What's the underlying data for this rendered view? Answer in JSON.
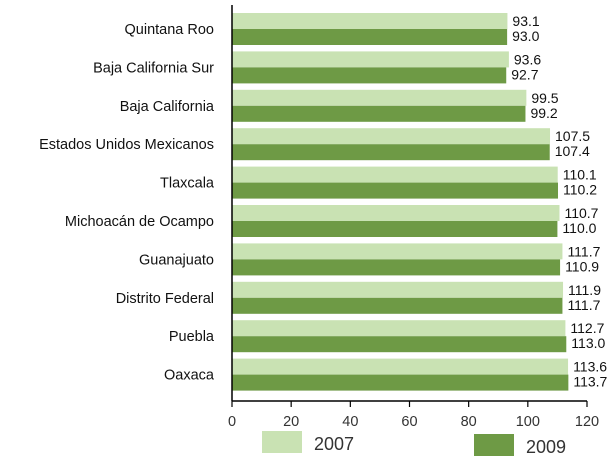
{
  "chart_data": {
    "type": "bar",
    "orientation": "horizontal",
    "categories": [
      "Quintana Roo",
      "Baja California Sur",
      "Baja California",
      "Estados Unidos Mexicanos",
      "Tlaxcala",
      "Michoacán de Ocampo",
      "Guanajuato",
      "Distrito Federal",
      "Puebla",
      "Oaxaca"
    ],
    "series": [
      {
        "name": "2007",
        "color": "#c9e2b3",
        "values": [
          93.1,
          93.6,
          99.5,
          107.5,
          110.1,
          110.7,
          111.7,
          111.9,
          112.7,
          113.6
        ],
        "labels": [
          "93.1",
          "93.6",
          "99.5",
          "107.5",
          "110.1",
          "110.7",
          "111.7",
          "111.9",
          "112.7",
          "113.6"
        ]
      },
      {
        "name": "2009",
        "color": "#6e9a45",
        "values": [
          93.0,
          92.7,
          99.2,
          107.4,
          110.2,
          110.0,
          110.9,
          111.7,
          113.0,
          113.7
        ],
        "labels": [
          "93.0",
          "92.7",
          "99.2",
          "107.4",
          "110.2",
          "110.0",
          "110.9",
          "111.7",
          "113.0",
          "113.7"
        ]
      }
    ],
    "xlim": [
      0,
      120
    ],
    "xticks": [
      "0",
      "20",
      "40",
      "60",
      "80",
      "100",
      "120"
    ],
    "title": "",
    "xlabel": "",
    "ylabel": "",
    "grid": false,
    "legend": "bottom"
  }
}
